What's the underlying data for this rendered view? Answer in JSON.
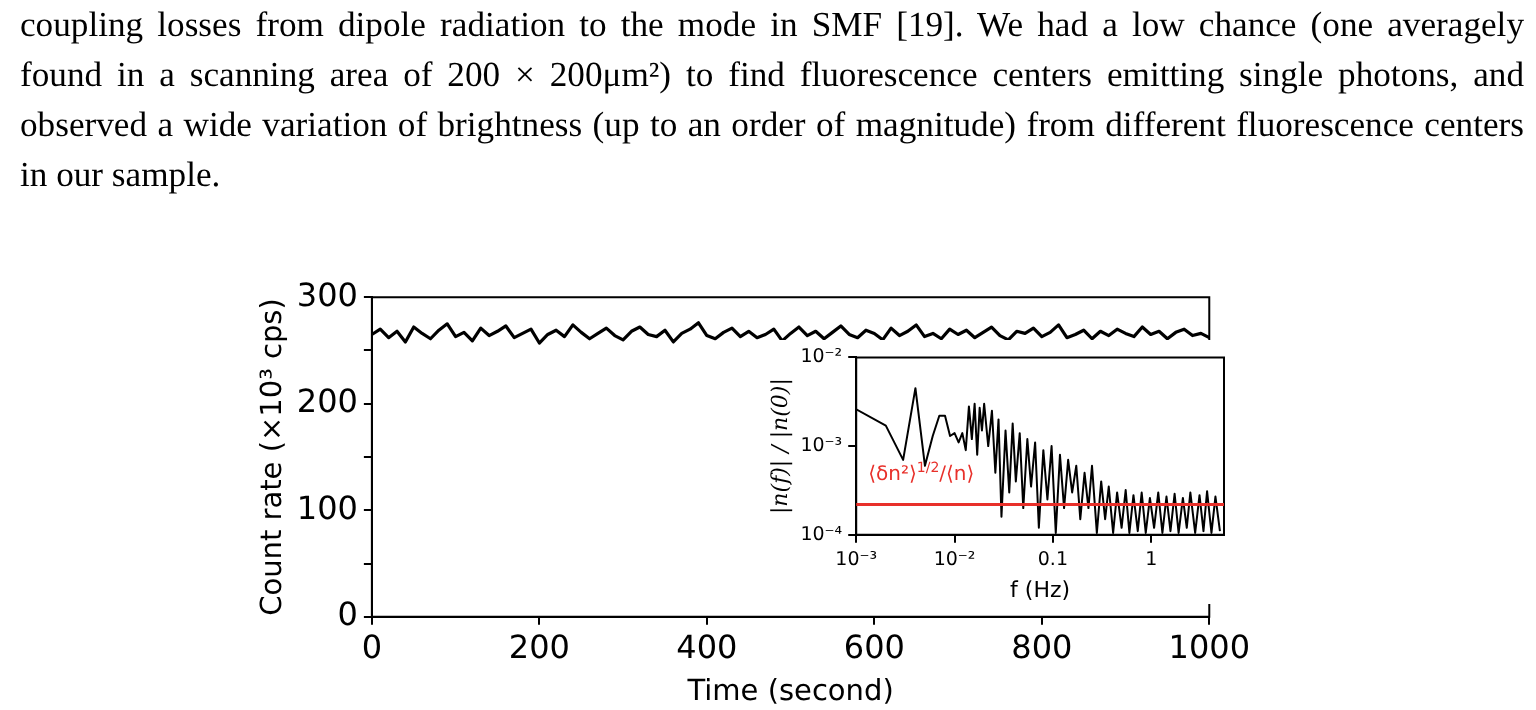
{
  "chart_data": [
    {
      "type": "line",
      "xlabel": "Time (second)",
      "ylabel": "Count rate (×10³ cps)",
      "marker": "none",
      "annotations": [
        "coupling losses from dipole radiation to the mode in SMF [19].  We had a low chance (one averagely found in a scanning area of 200 × 200μm²) to find fluorescence centers emitting single photons, and observed a wide variation of brightness (up to an order of magnitude) from different fluorescence centers in our sample."
      ],
      "xlim": [
        0,
        1000
      ],
      "xticks": [
        0,
        200,
        400,
        600,
        800,
        1000
      ],
      "ylim": [
        0,
        300
      ],
      "yticks": [
        0,
        {
          "value": 50,
          "label": null
        },
        100,
        {
          "value": 150,
          "label": null
        },
        200,
        {
          "value": 250,
          "label": null
        },
        300
      ],
      "x": [
        0,
        10,
        20,
        30,
        40,
        50,
        60,
        70,
        80,
        90,
        100,
        110,
        120,
        130,
        140,
        150,
        160,
        170,
        180,
        190,
        200,
        210,
        220,
        230,
        240,
        250,
        260,
        270,
        280,
        290,
        300,
        310,
        320,
        330,
        340,
        350,
        360,
        370,
        380,
        390,
        400,
        410,
        420,
        430,
        440,
        450,
        460,
        470,
        480,
        490,
        500,
        510,
        520,
        530,
        540,
        550,
        560,
        570,
        580,
        590,
        600,
        610,
        620,
        630,
        640,
        650,
        660,
        670,
        680,
        690,
        700,
        710,
        720,
        730,
        740,
        750,
        760,
        770,
        780,
        790,
        800,
        810,
        820,
        830,
        840,
        850,
        860,
        870,
        880,
        890,
        900,
        910,
        920,
        930,
        940,
        950,
        960,
        970,
        980,
        990,
        1000
      ],
      "series": [
        {
          "color": "#000000",
          "values": [
            265,
            270,
            262,
            268,
            258,
            272,
            266,
            261,
            269,
            275,
            263,
            267,
            259,
            271,
            264,
            268,
            273,
            262,
            266,
            270,
            257,
            265,
            269,
            263,
            274,
            267,
            261,
            266,
            271,
            264,
            260,
            268,
            272,
            265,
            263,
            269,
            258,
            266,
            270,
            276,
            264,
            261,
            267,
            271,
            263,
            268,
            262,
            265,
            270,
            259,
            266,
            272,
            264,
            268,
            261,
            267,
            273,
            265,
            262,
            269,
            266,
            260,
            271,
            264,
            268,
            274,
            263,
            266,
            261,
            270,
            265,
            269,
            262,
            267,
            272,
            264,
            260,
            268,
            266,
            271,
            263,
            267,
            274,
            262,
            265,
            269,
            261,
            268,
            264,
            270,
            266,
            263,
            272,
            265,
            268,
            261,
            267,
            270,
            264,
            266,
            262
          ]
        }
      ]
    },
    {
      "type": "line",
      "xlabel": "f (Hz)",
      "ylabel": "|n(f)| / |n(0)|",
      "marker": "none",
      "log": "xy",
      "xlim": [
        0.001,
        5.5
      ],
      "xticks": [
        {
          "value": 0.001,
          "label": "10⁻³"
        },
        {
          "value": 0.01,
          "label": "10⁻²"
        },
        0.1,
        1
      ],
      "ylim": [
        0.0001,
        0.01
      ],
      "yticks": [
        {
          "value": 0.0001,
          "label": "10⁻⁴"
        },
        {
          "value": 0.001,
          "label": "10⁻³"
        },
        {
          "value": 0.01,
          "label": "10⁻²"
        }
      ],
      "ref_lines": [
        {
          "axis": "y",
          "value": 0.00022,
          "label": "⟨δn²⟩$^{1/2}$/⟨n⟩",
          "color": "#e8302a"
        }
      ],
      "x": [
        0.001,
        0.002,
        0.003,
        0.004,
        0.005,
        0.006,
        0.007,
        0.008,
        0.009,
        0.01,
        0.011,
        0.012,
        0.013,
        0.014,
        0.015,
        0.016,
        0.017,
        0.018,
        0.019,
        0.02,
        0.022,
        0.024,
        0.026,
        0.028,
        0.03,
        0.033,
        0.036,
        0.039,
        0.042,
        0.046,
        0.05,
        0.055,
        0.06,
        0.066,
        0.072,
        0.08,
        0.088,
        0.097,
        0.107,
        0.118,
        0.13,
        0.143,
        0.157,
        0.173,
        0.19,
        0.21,
        0.23,
        0.25,
        0.28,
        0.31,
        0.34,
        0.37,
        0.41,
        0.45,
        0.5,
        0.55,
        0.6,
        0.66,
        0.73,
        0.8,
        0.88,
        0.97,
        1.07,
        1.18,
        1.3,
        1.43,
        1.57,
        1.73,
        1.9,
        2.1,
        2.3,
        2.5,
        2.8,
        3.1,
        3.4,
        3.7,
        4.1,
        4.5,
        5.0
      ],
      "series": [
        {
          "color": "#000000",
          "values": [
            0.0026,
            0.0017,
            0.0007,
            0.0045,
            0.0006,
            0.0013,
            0.0022,
            0.0022,
            0.0013,
            0.0014,
            0.0011,
            0.0014,
            0.0009,
            0.0028,
            0.0012,
            0.003,
            0.0008,
            0.0027,
            0.0015,
            0.003,
            0.001,
            0.0025,
            0.0005,
            0.002,
            0.00016,
            0.0015,
            0.0003,
            0.0018,
            0.0004,
            0.0014,
            0.0002,
            0.0012,
            0.00035,
            0.0011,
            0.00012,
            0.0009,
            0.00025,
            0.001,
            0.000105,
            0.0008,
            0.0002,
            0.0007,
            0.0003,
            0.0006,
            0.00015,
            0.0005,
            0.0002,
            0.0006,
            0.000105,
            0.0004,
            0.00015,
            0.00035,
            0.000105,
            0.0003,
            0.00012,
            0.00032,
            0.000105,
            0.00028,
            0.00011,
            0.0003,
            0.000105,
            0.00026,
            0.00012,
            0.0003,
            0.000105,
            0.00027,
            0.00011,
            0.00029,
            0.000105,
            0.00026,
            0.00012,
            0.0003,
            0.000105,
            0.00028,
            0.00011,
            0.00031,
            0.000105,
            0.00027,
            0.00011
          ]
        }
      ]
    }
  ]
}
